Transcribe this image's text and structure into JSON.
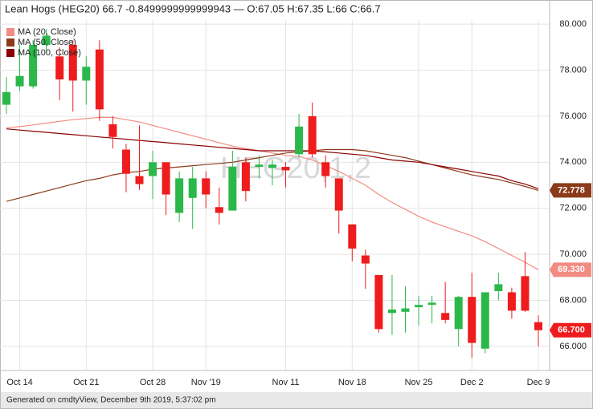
{
  "chart_data": {
    "type": "candlestick",
    "title": "Lean Hogs (HEG20) 66.7 -0.8499999999999943 — O:67.05 H:67.35 L:66 C:66.7",
    "watermark": "HEG20,1,2",
    "categories": [
      null,
      "Oct 14",
      null,
      null,
      null,
      null,
      "Oct 21",
      null,
      null,
      null,
      null,
      "Oct 28",
      null,
      null,
      null,
      "Nov '19",
      null,
      null,
      null,
      null,
      null,
      "Nov 11",
      null,
      null,
      null,
      null,
      "Nov 18",
      null,
      null,
      null,
      null,
      "Nov 25",
      null,
      null,
      null,
      "Dec 2",
      null,
      null,
      null,
      null,
      "Dec 9"
    ],
    "open": [
      76.5,
      77.3,
      77.3,
      79.1,
      78.6,
      79.1,
      77.55,
      78.9,
      75.65,
      74.55,
      73.4,
      73.4,
      74.0,
      71.8,
      72.45,
      73.3,
      72.05,
      71.9,
      74.0,
      73.8,
      73.75,
      73.8,
      74.35,
      76.0,
      74.0,
      73.3,
      71.3,
      69.95,
      69.1,
      67.45,
      67.5,
      67.7,
      67.8,
      67.45,
      66.75,
      68.15,
      65.9,
      68.4,
      68.35,
      69.05,
      67.05
    ],
    "high": [
      77.7,
      79.1,
      79.3,
      79.8,
      79.0,
      79.3,
      78.6,
      79.3,
      76.0,
      74.8,
      75.6,
      74.5,
      74.0,
      73.6,
      73.8,
      73.6,
      72.9,
      74.5,
      74.2,
      74.3,
      74.1,
      74.0,
      76.1,
      76.6,
      74.3,
      73.3,
      71.3,
      70.2,
      69.1,
      69.1,
      68.6,
      68.2,
      68.2,
      68.8,
      68.2,
      69.2,
      68.35,
      69.2,
      68.55,
      70.1,
      67.35
    ],
    "low": [
      76.1,
      77.1,
      77.2,
      78.8,
      76.7,
      76.2,
      76.5,
      75.8,
      74.6,
      72.7,
      72.8,
      72.4,
      71.7,
      71.4,
      71.1,
      72.0,
      71.3,
      71.9,
      72.3,
      73.3,
      73.0,
      72.9,
      74.2,
      74.2,
      72.9,
      70.9,
      69.7,
      68.5,
      66.6,
      66.5,
      66.6,
      66.9,
      67.0,
      67.0,
      66.0,
      65.5,
      65.7,
      68.0,
      67.2,
      67.5,
      66
    ],
    "close": [
      77.05,
      77.75,
      79.1,
      79.5,
      77.6,
      77.55,
      78.15,
      76.3,
      75.1,
      73.5,
      73.05,
      74.0,
      72.6,
      73.3,
      73.3,
      72.6,
      71.8,
      73.8,
      72.75,
      73.9,
      73.9,
      73.65,
      75.55,
      74.35,
      73.4,
      71.9,
      70.25,
      69.6,
      66.75,
      67.6,
      67.65,
      67.8,
      67.9,
      67.15,
      68.15,
      66.15,
      68.35,
      68.7,
      67.55,
      67.55,
      66.7
    ],
    "up_color": "#2bb84b",
    "down_color": "#ee1c1c",
    "series": [
      {
        "name": "MA (20, Close)",
        "color": "#f28b82",
        "values": [
          75.5,
          75.55,
          75.62,
          75.7,
          75.78,
          75.85,
          75.9,
          75.95,
          75.95,
          75.85,
          75.75,
          75.6,
          75.45,
          75.3,
          75.15,
          75.0,
          74.85,
          74.7,
          74.6,
          74.5,
          74.4,
          74.3,
          74.25,
          74.1,
          73.85,
          73.6,
          73.3,
          73.0,
          72.6,
          72.25,
          71.95,
          71.65,
          71.4,
          71.2,
          71.0,
          70.8,
          70.55,
          70.25,
          69.95,
          69.65,
          69.33
        ]
      },
      {
        "name": "MA (50, Close)",
        "color": "#8b3a1a",
        "values": [
          72.3,
          72.45,
          72.6,
          72.75,
          72.9,
          73.05,
          73.2,
          73.3,
          73.45,
          73.55,
          73.6,
          73.7,
          73.75,
          73.8,
          73.85,
          73.9,
          73.95,
          74.0,
          74.1,
          74.2,
          74.3,
          74.4,
          74.45,
          74.5,
          74.55,
          74.55,
          74.55,
          74.5,
          74.4,
          74.3,
          74.2,
          74.05,
          73.9,
          73.75,
          73.6,
          73.45,
          73.35,
          73.25,
          73.1,
          72.95,
          72.778
        ]
      },
      {
        "name": "MA (100, Close)",
        "color": "#8b0000",
        "values": [
          75.45,
          75.4,
          75.35,
          75.3,
          75.25,
          75.2,
          75.15,
          75.1,
          75.05,
          75.0,
          74.95,
          74.9,
          74.85,
          74.8,
          74.75,
          74.7,
          74.65,
          74.6,
          74.55,
          74.5,
          74.5,
          74.5,
          74.5,
          74.5,
          74.45,
          74.4,
          74.35,
          74.3,
          74.2,
          74.1,
          74.05,
          74.0,
          73.9,
          73.8,
          73.7,
          73.6,
          73.5,
          73.4,
          73.2,
          73.05,
          72.85
        ]
      }
    ],
    "price_labels": [
      {
        "value": 72.778,
        "label": "72.778",
        "color": "#8b3a1a"
      },
      {
        "value": 69.33,
        "label": "69.330",
        "color": "#f28b82"
      },
      {
        "value": 66.7,
        "label": "66.700",
        "color": "#ee1c1c"
      }
    ],
    "ylim": [
      64.95,
      80.18
    ],
    "yticks": [
      {
        "value": 66,
        "label": "66.000"
      },
      {
        "value": 68,
        "label": "68.000"
      },
      {
        "value": 70,
        "label": "70.000"
      },
      {
        "value": 72,
        "label": "72.000"
      },
      {
        "value": 74,
        "label": "74.000"
      },
      {
        "value": 76,
        "label": "76.000"
      },
      {
        "value": 78,
        "label": "78.000"
      },
      {
        "value": 80,
        "label": "80.000"
      }
    ],
    "grid": true,
    "legend": "top-left"
  },
  "footer": "Generated on cmdtyView, December 9th 2019, 5:37:02 pm"
}
